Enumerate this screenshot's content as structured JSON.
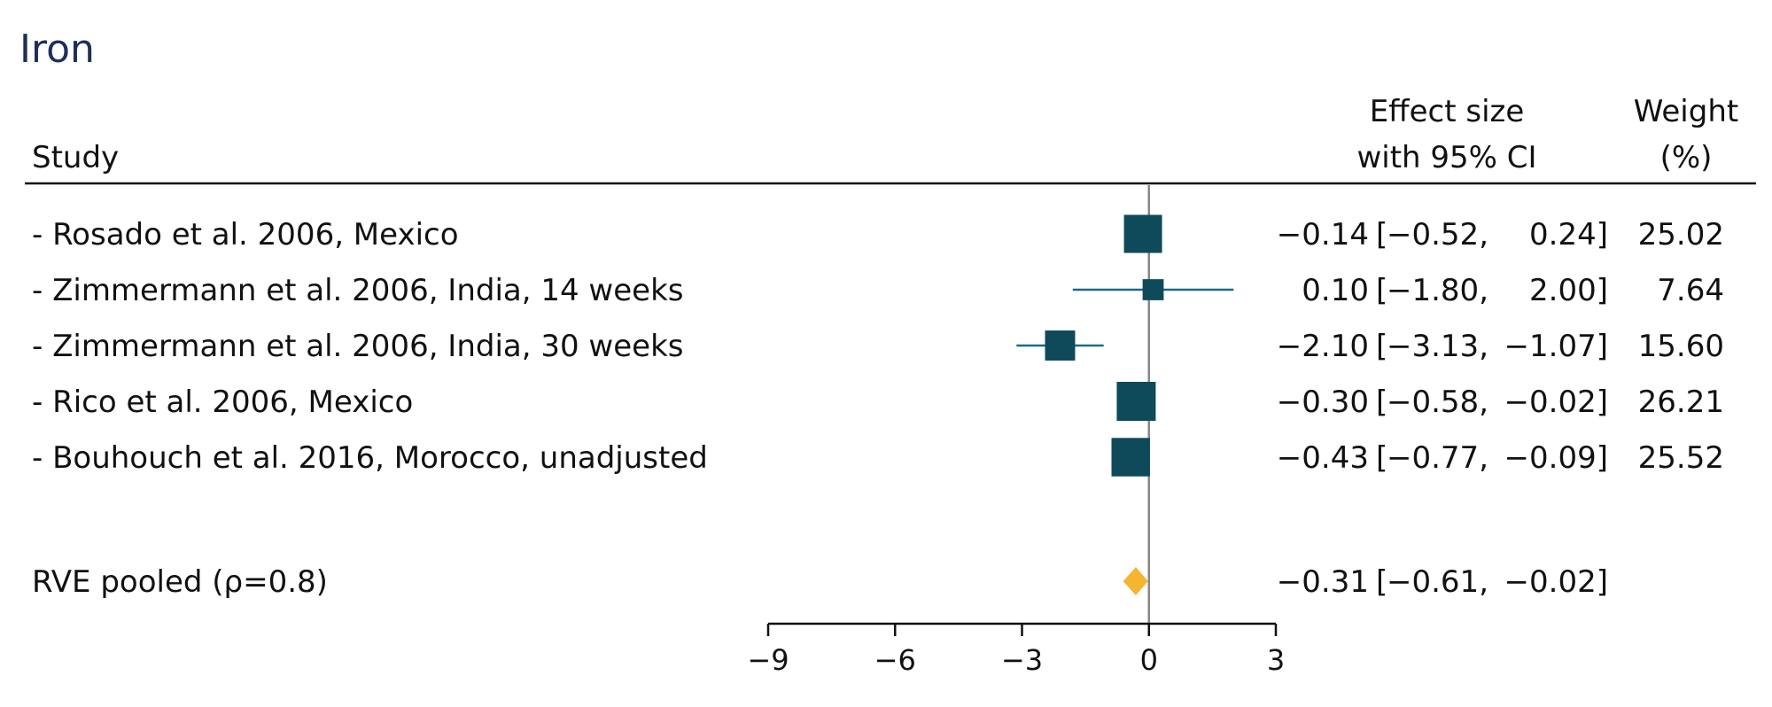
{
  "chart_data": {
    "type": "forest",
    "title": "Iron",
    "columns": {
      "study": "Study",
      "effect_line1": "Effect size",
      "effect_line2": "with 95% CI",
      "weight_line1": "Weight",
      "weight_line2": "(%)"
    },
    "studies": [
      {
        "label": "- Rosado et al. 2006, Mexico",
        "effect": -0.14,
        "lower": -0.52,
        "upper": 0.24,
        "effect_text": "-0.14",
        "lower_text": "-0.52,",
        "upper_text": "0.24]",
        "weight": 25.02,
        "weight_text": "25.02"
      },
      {
        "label": "- Zimmermann et al. 2006, India, 14 weeks",
        "effect": 0.1,
        "lower": -1.8,
        "upper": 2.0,
        "effect_text": "0.10",
        "lower_text": "-1.80,",
        "upper_text": "2.00]",
        "weight": 7.64,
        "weight_text": "7.64"
      },
      {
        "label": "- Zimmermann et al. 2006, India, 30 weeks",
        "effect": -2.1,
        "lower": -3.13,
        "upper": -1.07,
        "effect_text": "-2.10",
        "lower_text": "-3.13,",
        "upper_text": "-1.07]",
        "weight": 15.6,
        "weight_text": "15.60"
      },
      {
        "label": "- Rico et al. 2006, Mexico",
        "effect": -0.3,
        "lower": -0.58,
        "upper": -0.02,
        "effect_text": "-0.30",
        "lower_text": "-0.58,",
        "upper_text": "-0.02]",
        "weight": 26.21,
        "weight_text": "26.21"
      },
      {
        "label": "- Bouhouch et al. 2016, Morocco, unadjusted",
        "effect": -0.43,
        "lower": -0.77,
        "upper": -0.09,
        "effect_text": "-0.43",
        "lower_text": "-0.77,",
        "upper_text": "-0.09]",
        "weight": 25.52,
        "weight_text": "25.52"
      }
    ],
    "pooled": {
      "label": "RVE pooled (ρ=0.8)",
      "effect": -0.31,
      "lower": -0.61,
      "upper": -0.02,
      "effect_text": "-0.31",
      "lower_text": "-0.61,",
      "upper_text": "-0.02]"
    },
    "xlim": [
      -9,
      3
    ],
    "xticks": [
      -9,
      -6,
      -3,
      0,
      3
    ],
    "xtick_labels": [
      "-9",
      "-6",
      "-3",
      "0",
      "3"
    ],
    "reference_line": 0,
    "colors": {
      "marker": "#0e4a5a",
      "ci_line": "#1b6a88",
      "pooled": "#f6b530",
      "title": "#1f2f5c",
      "reference": "#888888"
    }
  }
}
